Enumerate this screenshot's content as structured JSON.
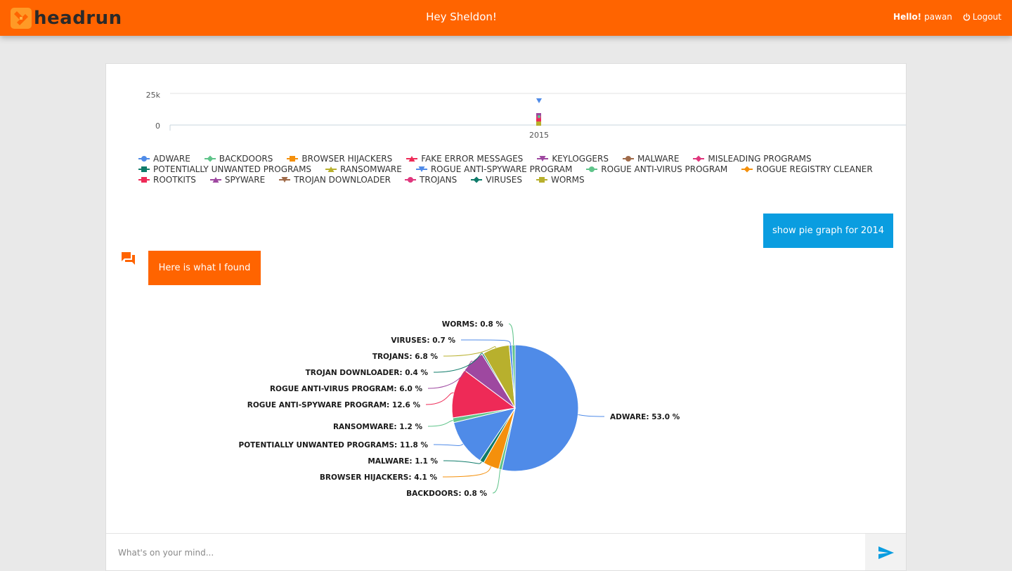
{
  "header": {
    "brand": "headrun",
    "greeting": "Hey Sheldon!",
    "hello_label": "Hello!",
    "username": "pawan",
    "logout_label": "Logout",
    "accent": "#ff6400"
  },
  "line_chart": {
    "y_ticks": [
      "25k",
      "0"
    ],
    "x_ticks": [
      "2015"
    ]
  },
  "legend": {
    "items": [
      {
        "label": "ADWARE",
        "color": "#4f8be8",
        "marker": "circle"
      },
      {
        "label": "BACKDOORS",
        "color": "#5fc48a",
        "marker": "diamond"
      },
      {
        "label": "BROWSER HIJACKERS",
        "color": "#f4900c",
        "marker": "square"
      },
      {
        "label": "FAKE ERROR MESSAGES",
        "color": "#ee2a57",
        "marker": "triangle"
      },
      {
        "label": "KEYLOGGERS",
        "color": "#9e48a0",
        "marker": "triangle-down"
      },
      {
        "label": "MALWARE",
        "color": "#a06b4a",
        "marker": "circle"
      },
      {
        "label": "MISLEADING PROGRAMS",
        "color": "#e0367d",
        "marker": "diamond"
      },
      {
        "label": "POTENTIALLY UNWANTED PROGRAMS",
        "color": "#0f7b6a",
        "marker": "square"
      },
      {
        "label": "RANSOMWARE",
        "color": "#b8b02d",
        "marker": "triangle"
      },
      {
        "label": "ROGUE ANTI-SPYWARE PROGRAM",
        "color": "#4f8be8",
        "marker": "triangle-down"
      },
      {
        "label": "ROGUE ANTI-VIRUS PROGRAM",
        "color": "#5fc48a",
        "marker": "circle"
      },
      {
        "label": "ROGUE REGISTRY CLEANER",
        "color": "#f4900c",
        "marker": "diamond"
      },
      {
        "label": "ROOTKITS",
        "color": "#ee2a57",
        "marker": "square"
      },
      {
        "label": "SPYWARE",
        "color": "#9e48a0",
        "marker": "triangle"
      },
      {
        "label": "TROJAN DOWNLOADER",
        "color": "#a06b4a",
        "marker": "triangle-down"
      },
      {
        "label": "TROJANS",
        "color": "#e0367d",
        "marker": "circle"
      },
      {
        "label": "VIRUSES",
        "color": "#0f7b6a",
        "marker": "diamond"
      },
      {
        "label": "WORMS",
        "color": "#b8b02d",
        "marker": "square"
      }
    ]
  },
  "chat": {
    "user_message": "show pie graph for 2014",
    "bot_message": "Here is what I found",
    "user_bubble_color": "#0a9de0",
    "bot_bubble_color": "#ff6400"
  },
  "input": {
    "placeholder": "What's on your mind..."
  },
  "chart_data": {
    "type": "pie",
    "title": "",
    "slices": [
      {
        "label": "ADWARE",
        "value": 53.0,
        "color": "#4f8be8"
      },
      {
        "label": "BACKDOORS",
        "value": 0.8,
        "color": "#5fc48a"
      },
      {
        "label": "BROWSER HIJACKERS",
        "value": 4.1,
        "color": "#f4900c"
      },
      {
        "label": "MALWARE",
        "value": 1.1,
        "color": "#0f7b6a"
      },
      {
        "label": "POTENTIALLY UNWANTED PROGRAMS",
        "value": 11.8,
        "color": "#4f8be8"
      },
      {
        "label": "RANSOMWARE",
        "value": 1.2,
        "color": "#5fc48a"
      },
      {
        "label": "ROGUE ANTI-SPYWARE PROGRAM",
        "value": 12.6,
        "color": "#ee2a57"
      },
      {
        "label": "ROGUE ANTI-VIRUS PROGRAM",
        "value": 6.0,
        "color": "#9e48a0"
      },
      {
        "label": "TROJAN DOWNLOADER",
        "value": 0.4,
        "color": "#0f7b6a"
      },
      {
        "label": "TROJANS",
        "value": 6.8,
        "color": "#b8b02d"
      },
      {
        "label": "VIRUSES",
        "value": 0.7,
        "color": "#4f8be8"
      },
      {
        "label": "WORMS",
        "value": 0.8,
        "color": "#5fc48a"
      }
    ],
    "label_texts": [
      "ADWARE: 53.0 %",
      "BACKDOORS: 0.8 %",
      "BROWSER HIJACKERS: 4.1 %",
      "MALWARE: 1.1 %",
      "POTENTIALLY UNWANTED PROGRAMS: 11.8 %",
      "RANSOMWARE: 1.2 %",
      "ROGUE ANTI-SPYWARE PROGRAM: 12.6 %",
      "ROGUE ANTI-VIRUS PROGRAM: 6.0 %",
      "TROJAN DOWNLOADER: 0.4 %",
      "TROJANS: 6.8 %",
      "VIRUSES: 0.7 %",
      "WORMS: 0.8 %"
    ]
  }
}
